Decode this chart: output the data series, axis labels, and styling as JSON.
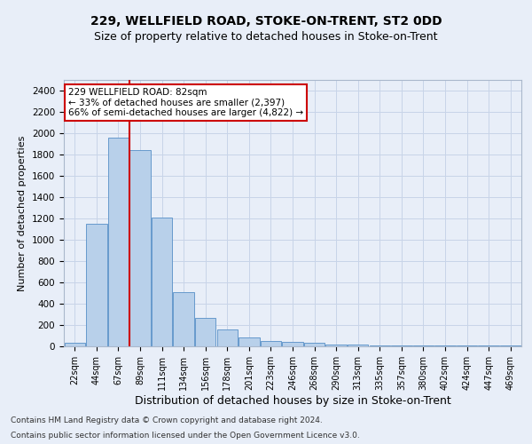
{
  "title1": "229, WELLFIELD ROAD, STOKE-ON-TRENT, ST2 0DD",
  "title2": "Size of property relative to detached houses in Stoke-on-Trent",
  "xlabel": "Distribution of detached houses by size in Stoke-on-Trent",
  "ylabel": "Number of detached properties",
  "footnote1": "Contains HM Land Registry data © Crown copyright and database right 2024.",
  "footnote2": "Contains public sector information licensed under the Open Government Licence v3.0.",
  "bar_labels": [
    "22sqm",
    "44sqm",
    "67sqm",
    "89sqm",
    "111sqm",
    "134sqm",
    "156sqm",
    "178sqm",
    "201sqm",
    "223sqm",
    "246sqm",
    "268sqm",
    "290sqm",
    "313sqm",
    "335sqm",
    "357sqm",
    "380sqm",
    "402sqm",
    "424sqm",
    "447sqm",
    "469sqm"
  ],
  "bar_values": [
    30,
    1150,
    1960,
    1840,
    1210,
    510,
    265,
    155,
    80,
    50,
    42,
    35,
    20,
    18,
    10,
    10,
    10,
    10,
    5,
    5,
    5
  ],
  "bar_color": "#b8d0ea",
  "bar_edge_color": "#6699cc",
  "ylim": [
    0,
    2500
  ],
  "yticks": [
    0,
    200,
    400,
    600,
    800,
    1000,
    1200,
    1400,
    1600,
    1800,
    2000,
    2200,
    2400
  ],
  "vline_x_index": 2.5,
  "annotation_text": "229 WELLFIELD ROAD: 82sqm\n← 33% of detached houses are smaller (2,397)\n66% of semi-detached houses are larger (4,822) →",
  "annotation_box_color": "#ffffff",
  "annotation_box_edge": "#cc0000",
  "vline_color": "#cc0000",
  "grid_color": "#c8d4e8",
  "background_color": "#e8eef8",
  "plot_bg_color": "#e8eef8",
  "title1_fontsize": 10,
  "title2_fontsize": 9,
  "ylabel_fontsize": 8,
  "xlabel_fontsize": 9,
  "tick_fontsize": 7,
  "footnote_fontsize": 6.5
}
